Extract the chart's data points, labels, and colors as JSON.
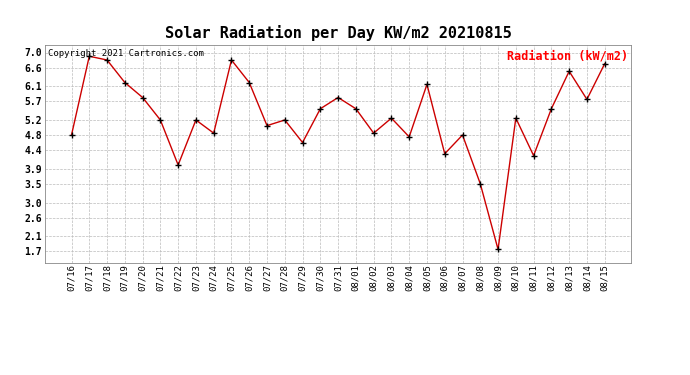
{
  "title": "Solar Radiation per Day KW/m2 20210815",
  "copyright_text": "Copyright 2021 Cartronics.com",
  "legend_label": "Radiation (kW/m2)",
  "dates": [
    "07/16",
    "07/17",
    "07/18",
    "07/19",
    "07/20",
    "07/21",
    "07/22",
    "07/23",
    "07/24",
    "07/25",
    "07/26",
    "07/27",
    "07/28",
    "07/29",
    "07/30",
    "07/31",
    "08/01",
    "08/02",
    "08/03",
    "08/04",
    "08/05",
    "08/06",
    "08/07",
    "08/08",
    "08/09",
    "08/10",
    "08/11",
    "08/12",
    "08/13",
    "08/14",
    "08/15"
  ],
  "values": [
    4.8,
    6.9,
    6.8,
    6.2,
    5.8,
    5.2,
    4.0,
    5.2,
    4.85,
    6.8,
    6.2,
    5.05,
    5.2,
    4.6,
    5.5,
    5.8,
    5.5,
    4.85,
    5.25,
    4.75,
    6.15,
    4.3,
    4.8,
    3.5,
    1.75,
    5.25,
    4.25,
    5.5,
    6.5,
    5.75,
    6.7
  ],
  "yticks": [
    1.7,
    2.1,
    2.6,
    3.0,
    3.5,
    3.9,
    4.4,
    4.8,
    5.2,
    5.7,
    6.1,
    6.6,
    7.0
  ],
  "ylim": [
    1.4,
    7.2
  ],
  "line_color": "#cc0000",
  "marker_color": "#000000",
  "grid_color": "#bbbbbb",
  "bg_color": "#ffffff",
  "title_fontsize": 11,
  "copyright_fontsize": 6.5,
  "legend_fontsize": 8.5,
  "tick_fontsize": 6.5
}
